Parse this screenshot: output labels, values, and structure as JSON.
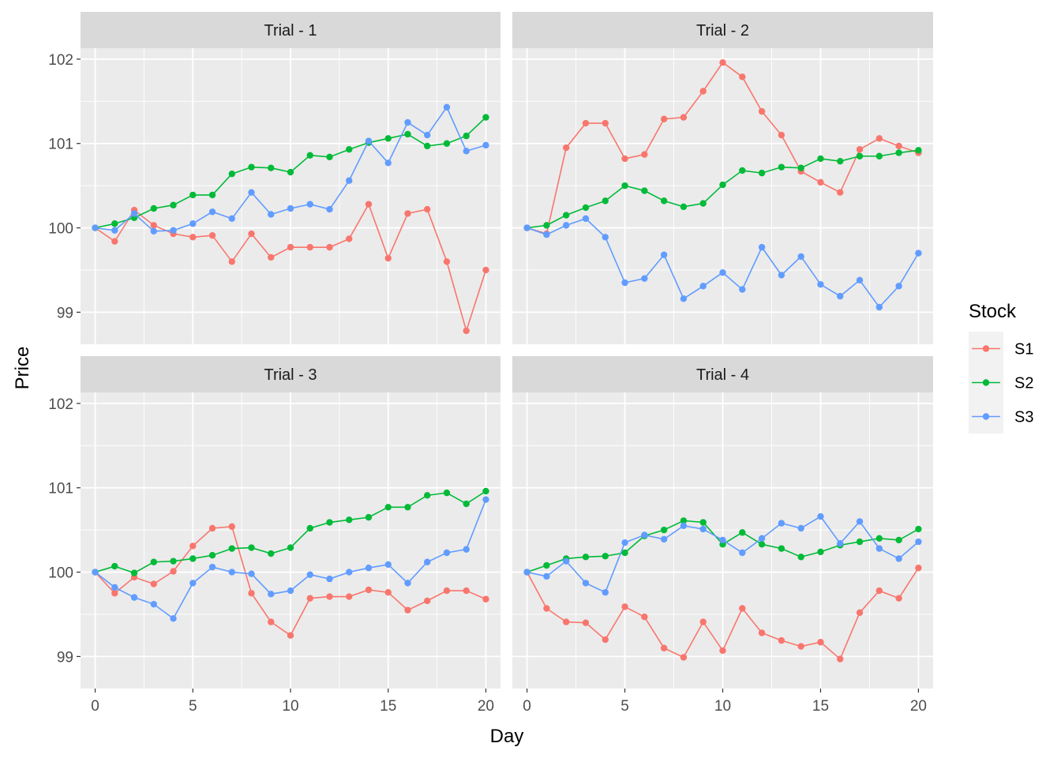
{
  "chart_data": {
    "type": "line",
    "facets": [
      {
        "title": "Trial - 1",
        "series": [
          {
            "name": "S1",
            "values": [
              100,
              99.84,
              100.21,
              100.03,
              99.93,
              99.89,
              99.91,
              99.6,
              99.93,
              99.65,
              99.77,
              99.77,
              99.77,
              99.87,
              100.28,
              99.64,
              100.17,
              100.22,
              99.6,
              98.78,
              99.5
            ]
          },
          {
            "name": "S2",
            "values": [
              100,
              100.05,
              100.12,
              100.23,
              100.27,
              100.39,
              100.39,
              100.64,
              100.72,
              100.71,
              100.66,
              100.86,
              100.84,
              100.93,
              101.01,
              101.06,
              101.11,
              100.97,
              101.0,
              101.09,
              101.31
            ]
          },
          {
            "name": "S3",
            "values": [
              100,
              99.97,
              100.17,
              99.96,
              99.97,
              100.05,
              100.19,
              100.11,
              100.42,
              100.16,
              100.23,
              100.28,
              100.22,
              100.56,
              101.03,
              100.77,
              101.25,
              101.1,
              101.43,
              100.91,
              100.98
            ]
          }
        ]
      },
      {
        "title": "Trial - 2",
        "series": [
          {
            "name": "S1",
            "values": [
              100,
              99.93,
              100.95,
              101.24,
              101.24,
              100.82,
              100.87,
              101.29,
              101.31,
              101.62,
              101.96,
              101.79,
              101.38,
              101.1,
              100.67,
              100.54,
              100.42,
              100.93,
              101.06,
              100.97,
              100.89
            ]
          },
          {
            "name": "S2",
            "values": [
              100,
              100.03,
              100.15,
              100.24,
              100.32,
              100.5,
              100.44,
              100.32,
              100.25,
              100.29,
              100.51,
              100.68,
              100.65,
              100.72,
              100.71,
              100.82,
              100.79,
              100.85,
              100.85,
              100.89,
              100.92
            ]
          },
          {
            "name": "S3",
            "values": [
              100,
              99.92,
              100.03,
              100.11,
              99.89,
              99.35,
              99.4,
              99.68,
              99.16,
              99.31,
              99.47,
              99.27,
              99.77,
              99.44,
              99.66,
              99.33,
              99.19,
              99.38,
              99.06,
              99.31,
              99.7
            ]
          }
        ]
      },
      {
        "title": "Trial - 3",
        "series": [
          {
            "name": "S1",
            "values": [
              100,
              99.75,
              99.94,
              99.86,
              100.01,
              100.31,
              100.52,
              100.54,
              99.75,
              99.41,
              99.25,
              99.69,
              99.71,
              99.71,
              99.79,
              99.76,
              99.55,
              99.66,
              99.78,
              99.78,
              99.68
            ]
          },
          {
            "name": "S2",
            "values": [
              100,
              100.07,
              99.99,
              100.12,
              100.13,
              100.16,
              100.2,
              100.28,
              100.29,
              100.22,
              100.29,
              100.52,
              100.59,
              100.62,
              100.65,
              100.77,
              100.77,
              100.91,
              100.94,
              100.81,
              100.96
            ]
          },
          {
            "name": "S3",
            "values": [
              100,
              99.82,
              99.7,
              99.62,
              99.45,
              99.87,
              100.06,
              100.0,
              99.98,
              99.74,
              99.78,
              99.97,
              99.92,
              100.0,
              100.05,
              100.09,
              99.87,
              100.12,
              100.23,
              100.27,
              100.86
            ]
          }
        ]
      },
      {
        "title": "Trial - 4",
        "series": [
          {
            "name": "S1",
            "values": [
              100,
              99.57,
              99.41,
              99.4,
              99.2,
              99.59,
              99.47,
              99.1,
              98.99,
              99.41,
              99.07,
              99.57,
              99.28,
              99.19,
              99.12,
              99.17,
              98.97,
              99.52,
              99.78,
              99.69,
              100.05
            ]
          },
          {
            "name": "S2",
            "values": [
              100,
              100.08,
              100.16,
              100.18,
              100.19,
              100.23,
              100.43,
              100.5,
              100.61,
              100.59,
              100.33,
              100.47,
              100.33,
              100.28,
              100.18,
              100.24,
              100.32,
              100.36,
              100.4,
              100.38,
              100.51
            ]
          },
          {
            "name": "S3",
            "values": [
              100,
              99.95,
              100.13,
              99.87,
              99.76,
              100.35,
              100.44,
              100.39,
              100.55,
              100.51,
              100.38,
              100.23,
              100.4,
              100.58,
              100.52,
              100.66,
              100.34,
              100.6,
              100.28,
              100.16,
              100.36
            ]
          }
        ]
      }
    ],
    "x": [
      0,
      1,
      2,
      3,
      4,
      5,
      6,
      7,
      8,
      9,
      10,
      11,
      12,
      13,
      14,
      15,
      16,
      17,
      18,
      19,
      20
    ],
    "xlabel": "Day",
    "ylabel": "Price",
    "x_ticks": [
      "0",
      "5",
      "10",
      "15",
      "20"
    ],
    "y_ticks": [
      "99",
      "100",
      "101",
      "102"
    ],
    "xlim": [
      -0.75,
      20.75
    ],
    "ylim": [
      98.62,
      102.13
    ],
    "legend": {
      "title": "Stock",
      "entries": [
        "S1",
        "S2",
        "S3"
      ],
      "placement": "right"
    },
    "colors": {
      "S1": "#F8766D",
      "S2": "#00BA38",
      "S3": "#619CFF"
    },
    "grid": true
  }
}
